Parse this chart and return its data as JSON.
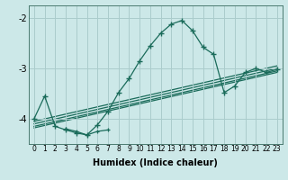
{
  "xlabel": "Humidex (Indice chaleur)",
  "bg_color": "#cce8e8",
  "line_color": "#1a6b5a",
  "grid_color": "#aacccc",
  "xlim": [
    -0.5,
    23.5
  ],
  "ylim": [
    -4.5,
    -1.75
  ],
  "yticks": [
    -4,
    -3,
    -2
  ],
  "xticks": [
    0,
    1,
    2,
    3,
    4,
    5,
    6,
    7,
    8,
    9,
    10,
    11,
    12,
    13,
    14,
    15,
    16,
    17,
    18,
    19,
    20,
    21,
    22,
    23
  ],
  "main_series": {
    "x": [
      0,
      1,
      2,
      3,
      4,
      5,
      6,
      7,
      8,
      9,
      10,
      11,
      12,
      13,
      14,
      15,
      16,
      17,
      18,
      19,
      20,
      21,
      22,
      23
    ],
    "y": [
      -4.0,
      -3.55,
      -4.15,
      -4.22,
      -4.28,
      -4.32,
      -4.12,
      -3.85,
      -3.48,
      -3.2,
      -2.85,
      -2.55,
      -2.3,
      -2.12,
      -2.05,
      -2.25,
      -2.58,
      -2.72,
      -3.48,
      -3.35,
      -3.08,
      -3.0,
      -3.08,
      -3.02
    ]
  },
  "linear_series": [
    {
      "x": [
        0,
        23
      ],
      "y": [
        -4.05,
        -2.95
      ]
    },
    {
      "x": [
        0,
        23
      ],
      "y": [
        -4.1,
        -3.0
      ]
    },
    {
      "x": [
        0,
        23
      ],
      "y": [
        -4.15,
        -3.05
      ]
    },
    {
      "x": [
        0,
        23
      ],
      "y": [
        -4.18,
        -3.08
      ]
    }
  ],
  "extra_series": [
    {
      "x": [
        3,
        4,
        5,
        6,
        7
      ],
      "y": [
        -4.2,
        -4.25,
        -4.32,
        -4.25,
        -4.22
      ]
    }
  ]
}
